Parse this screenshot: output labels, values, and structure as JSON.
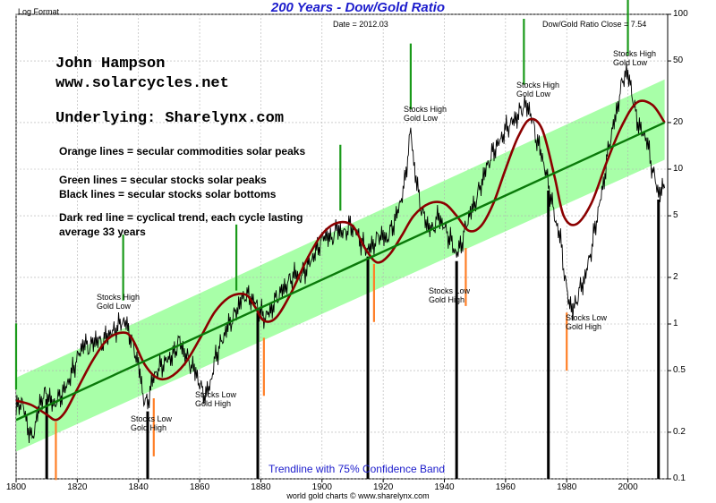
{
  "chart_data": {
    "type": "line",
    "title": "200 Years - Dow/Gold Ratio",
    "scale_label": "Log Format",
    "date_label": "Date = 2012.03",
    "close_label": "Dow/Gold Ratio Close = 7.54",
    "footer": "world gold charts © www.sharelynx.com",
    "band_label": "Trendline with 75% Confidence Band",
    "x_range": [
      1800,
      2013
    ],
    "y_range": [
      0.1,
      100
    ],
    "y_scale": "log",
    "x_ticks": [
      1800,
      1820,
      1840,
      1860,
      1880,
      1900,
      1920,
      1940,
      1960,
      1980,
      2000
    ],
    "y_ticks": [
      0.1,
      0.2,
      0.5,
      1,
      2,
      5,
      10,
      20,
      50,
      100
    ],
    "series": [
      {
        "name": "Dow/Gold Ratio",
        "color": "#000000",
        "x": [
          1800,
          1802,
          1803,
          1805,
          1806,
          1808,
          1810,
          1812,
          1814,
          1816,
          1818,
          1820,
          1822,
          1824,
          1826,
          1828,
          1830,
          1832,
          1834,
          1835,
          1836,
          1838,
          1840,
          1841,
          1842,
          1843,
          1844,
          1846,
          1848,
          1850,
          1852,
          1853,
          1855,
          1857,
          1859,
          1860,
          1862,
          1864,
          1865,
          1867,
          1869,
          1871,
          1873,
          1875,
          1877,
          1879,
          1881,
          1883,
          1885,
          1887,
          1889,
          1891,
          1893,
          1895,
          1897,
          1899,
          1901,
          1903,
          1905,
          1907,
          1909,
          1911,
          1913,
          1915,
          1917,
          1919,
          1921,
          1923,
          1925,
          1927,
          1929,
          1930,
          1932,
          1934,
          1936,
          1938,
          1940,
          1942,
          1944,
          1946,
          1948,
          1950,
          1952,
          1954,
          1956,
          1958,
          1960,
          1962,
          1964,
          1966,
          1968,
          1970,
          1972,
          1974,
          1976,
          1978,
          1980,
          1982,
          1984,
          1986,
          1988,
          1990,
          1992,
          1994,
          1996,
          1998,
          1999,
          2000,
          2001,
          2002,
          2004,
          2006,
          2008,
          2010,
          2012
        ],
        "y": [
          0.28,
          0.32,
          0.25,
          0.18,
          0.21,
          0.32,
          0.36,
          0.3,
          0.33,
          0.38,
          0.47,
          0.6,
          0.75,
          0.7,
          0.8,
          0.75,
          0.85,
          0.9,
          1.0,
          1.05,
          1.0,
          0.75,
          0.55,
          0.4,
          0.32,
          0.3,
          0.4,
          0.5,
          0.55,
          0.6,
          0.65,
          0.8,
          0.65,
          0.55,
          0.48,
          0.4,
          0.34,
          0.45,
          0.6,
          0.75,
          0.95,
          1.1,
          1.35,
          1.55,
          1.45,
          1.3,
          1.1,
          1.2,
          1.45,
          1.65,
          1.85,
          2.1,
          2.0,
          2.3,
          2.7,
          3.2,
          3.8,
          3.5,
          4.2,
          3.8,
          4.3,
          4.0,
          3.3,
          3.0,
          3.3,
          3.8,
          3.5,
          4.2,
          5.5,
          8.0,
          18.0,
          11.0,
          6.0,
          4.5,
          4.0,
          5.0,
          4.2,
          3.5,
          2.8,
          3.5,
          5.0,
          6.0,
          8.0,
          10.5,
          13.0,
          15.0,
          18.0,
          20.0,
          22.0,
          26.0,
          24.0,
          16.0,
          12.0,
          8.0,
          5.0,
          3.5,
          1.6,
          1.2,
          1.6,
          2.0,
          3.0,
          5.0,
          8.0,
          15.0,
          22.0,
          35.0,
          42.0,
          40.0,
          35.0,
          25.0,
          18.0,
          16.0,
          10.0,
          7.0,
          7.54
        ]
      },
      {
        "name": "Cyclical trend",
        "color": "#8b0000",
        "x": [
          1800,
          1805,
          1810,
          1813,
          1816,
          1820,
          1825,
          1830,
          1835,
          1838,
          1842,
          1846,
          1850,
          1855,
          1860,
          1865,
          1870,
          1875,
          1878,
          1881,
          1885,
          1890,
          1895,
          1900,
          1905,
          1910,
          1914,
          1918,
          1922,
          1926,
          1930,
          1935,
          1940,
          1944,
          1948,
          1952,
          1956,
          1960,
          1964,
          1968,
          1972,
          1976,
          1979,
          1983,
          1988,
          1993,
          1998,
          2003,
          2008,
          2012
        ],
        "y": [
          0.32,
          0.3,
          0.26,
          0.24,
          0.27,
          0.38,
          0.58,
          0.8,
          0.88,
          0.8,
          0.55,
          0.45,
          0.45,
          0.55,
          0.8,
          1.2,
          1.5,
          1.55,
          1.3,
          1.05,
          1.1,
          1.6,
          2.6,
          3.8,
          4.5,
          4.3,
          3.1,
          2.5,
          2.8,
          3.7,
          5.0,
          6.0,
          6.0,
          5.0,
          4.0,
          4.3,
          6.0,
          10.0,
          16.0,
          21.0,
          18.0,
          9.0,
          5.0,
          4.4,
          6.0,
          11.0,
          19.0,
          27.0,
          26.0,
          20.0
        ]
      },
      {
        "name": "Trendline",
        "color": "#0a7a0a",
        "x": [
          1800,
          2012
        ],
        "y": [
          0.24,
          20.0
        ]
      }
    ],
    "confidence_band": {
      "label": "Trendline with 75% Confidence Band",
      "upper": [
        0.45,
        38.0
      ],
      "lower": [
        0.15,
        11.5
      ],
      "color": "#99ff99"
    },
    "markers": {
      "green_secular_stocks_peaks": [
        1800,
        1835,
        1872,
        1906,
        1929,
        1966,
        2000
      ],
      "orange_secular_commodities_peaks": [
        1813,
        1845,
        1881,
        1917,
        1947,
        1980
      ],
      "black_secular_stocks_bottoms": [
        1810,
        1843,
        1879,
        1915,
        1944,
        1974,
        2010
      ]
    },
    "annotations": [
      {
        "text": "John Hampson",
        "style": "big"
      },
      {
        "text": "www.solarcycles.net",
        "style": "big"
      },
      {
        "text": "Underlying: Sharelynx.com",
        "style": "big"
      },
      {
        "text": "Orange lines = secular commodities solar peaks",
        "style": "legend"
      },
      {
        "text": "Green lines = secular stocks solar peaks",
        "style": "legend"
      },
      {
        "text": "Black lines = secular stocks solar bottoms",
        "style": "legend"
      },
      {
        "text": "Dark red line = cyclical trend, each cycle lasting average 33 years",
        "style": "legend"
      },
      {
        "text": "Stocks High Gold Low",
        "x": 1835
      },
      {
        "text": "Stocks Low Gold High",
        "x": 1843
      },
      {
        "text": "Stocks Low Gold High",
        "x": 1879
      },
      {
        "text": "Stocks High Gold Low",
        "x": 1929
      },
      {
        "text": "Stocks Low Gold High",
        "x": 1944
      },
      {
        "text": "Stocks High Gold Low",
        "x": 1966
      },
      {
        "text": "Stocks Low Gold High",
        "x": 1980
      },
      {
        "text": "Stocks High Gold Low",
        "x": 2000
      }
    ]
  }
}
